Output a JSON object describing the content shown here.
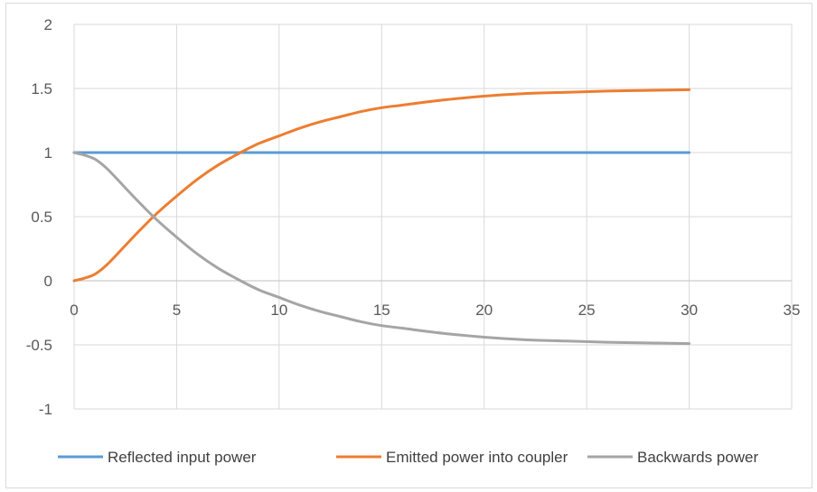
{
  "chart_data": {
    "type": "line",
    "title": "",
    "xlabel": "",
    "ylabel": "",
    "xlim": [
      0,
      35
    ],
    "ylim": [
      -1,
      2
    ],
    "x_ticks": [
      0,
      5,
      10,
      15,
      20,
      25,
      30,
      35
    ],
    "y_ticks": [
      2,
      1.5,
      1,
      0.5,
      0,
      -0.5,
      -1
    ],
    "x_tick_labels": [
      "0",
      "5",
      "10",
      "15",
      "20",
      "25",
      "30",
      "35"
    ],
    "y_tick_labels": [
      "2",
      "1.5",
      "1",
      "0.5",
      "0",
      "-0.5",
      "-1"
    ],
    "grid": true,
    "legend_position": "bottom",
    "series": [
      {
        "name": "Reflected input power",
        "color": "#5b9bd5",
        "x": [
          0,
          1,
          2,
          3,
          4,
          5,
          6,
          7,
          8,
          9,
          10,
          12,
          14,
          16,
          18,
          20,
          22,
          24,
          26,
          28,
          30
        ],
        "y": [
          1,
          1,
          1,
          1,
          1,
          1,
          1,
          1,
          1,
          1,
          1,
          1,
          1,
          1,
          1,
          1,
          1,
          1,
          1,
          1,
          1
        ]
      },
      {
        "name": "Emitted power into coupler",
        "color": "#ed7d31",
        "x": [
          0,
          0.5,
          1,
          1.5,
          2,
          3,
          4,
          5,
          6,
          7,
          8,
          9,
          10,
          11,
          12,
          13,
          14,
          15,
          16,
          18,
          20,
          22,
          24,
          26,
          28,
          30
        ],
        "y": [
          0,
          0.02,
          0.05,
          0.11,
          0.19,
          0.36,
          0.52,
          0.66,
          0.79,
          0.9,
          0.99,
          1.07,
          1.13,
          1.19,
          1.24,
          1.28,
          1.32,
          1.35,
          1.37,
          1.41,
          1.44,
          1.46,
          1.47,
          1.48,
          1.485,
          1.49
        ]
      },
      {
        "name": "Backwards power",
        "color": "#a5a5a5",
        "x": [
          0,
          0.5,
          1,
          1.5,
          2,
          3,
          4,
          5,
          6,
          7,
          8,
          9,
          10,
          11,
          12,
          13,
          14,
          15,
          16,
          18,
          20,
          22,
          24,
          26,
          28,
          30
        ],
        "y": [
          1,
          0.98,
          0.95,
          0.89,
          0.81,
          0.64,
          0.48,
          0.34,
          0.21,
          0.1,
          0.01,
          -0.07,
          -0.13,
          -0.19,
          -0.24,
          -0.28,
          -0.32,
          -0.35,
          -0.37,
          -0.41,
          -0.44,
          -0.46,
          -0.47,
          -0.48,
          -0.485,
          -0.49
        ]
      }
    ]
  }
}
